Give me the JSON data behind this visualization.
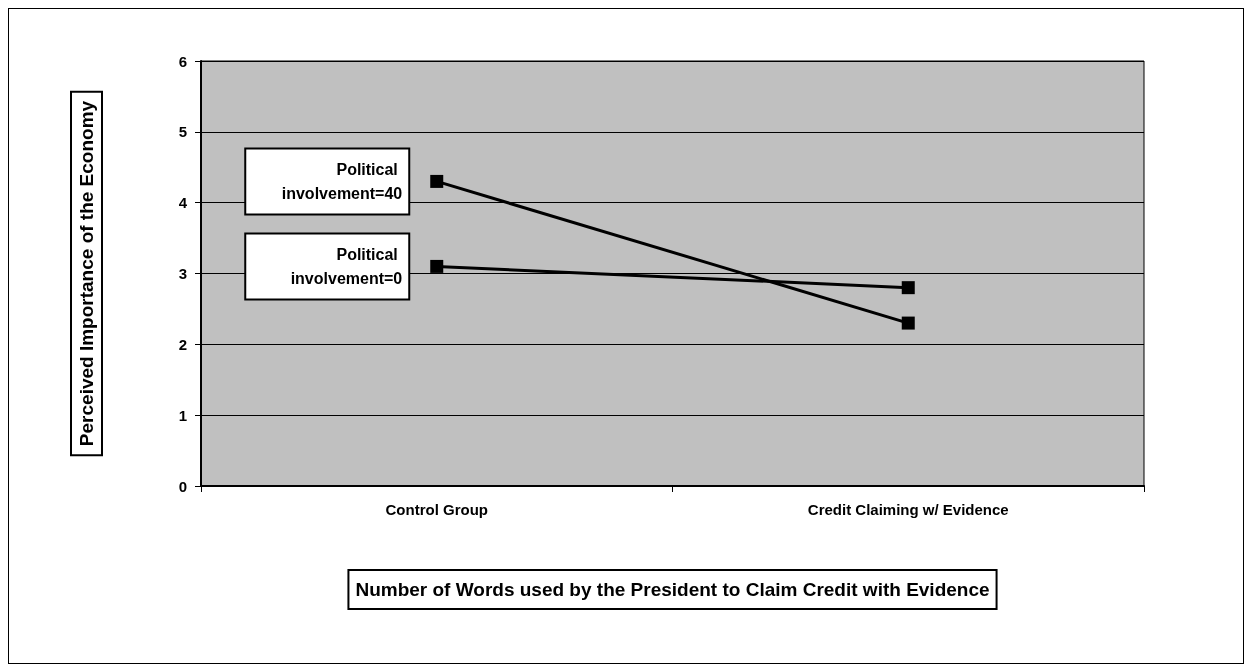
{
  "chart_data": {
    "type": "line",
    "xlabel": "Number of Words used by the President to Claim Credit with Evidence",
    "ylabel": "Perceived Importance of the Economy",
    "categories": [
      "Control Group",
      "Credit Claiming w/ Evidence"
    ],
    "series": [
      {
        "name": "Political involvement=40",
        "color": "#000000",
        "values": [
          4.3,
          2.3
        ]
      },
      {
        "name": "Political involvement=0",
        "color": "#000000",
        "values": [
          3.1,
          2.8
        ]
      }
    ],
    "ylim": [
      0,
      6
    ],
    "yticks": [
      0,
      1,
      2,
      3,
      4,
      5,
      6
    ],
    "grid": "y",
    "legend": false,
    "marker": "square",
    "line_style": "solid"
  }
}
